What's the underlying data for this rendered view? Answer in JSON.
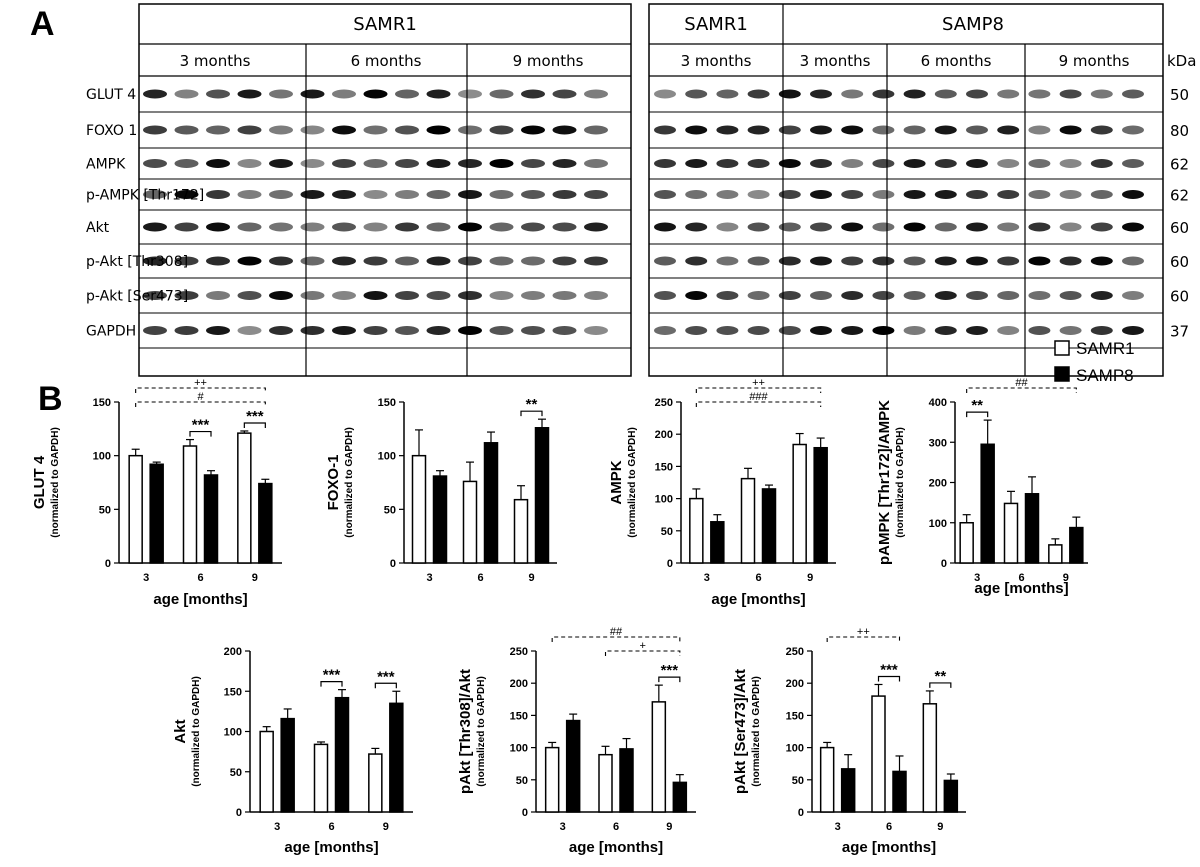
{
  "panel_a": {
    "letter": "A",
    "left_group": "SAMR1",
    "right_groups": [
      "SAMR1",
      "SAMP8"
    ],
    "left_months": [
      "3 months",
      "6 months",
      "9 months"
    ],
    "right_months": [
      "3 months",
      "3 months",
      "6 months",
      "9 months"
    ],
    "unit": "kDa",
    "rows": [
      {
        "label": "GLUT 4",
        "kda": "50"
      },
      {
        "label": "FOXO 1",
        "kda": "80"
      },
      {
        "label": "AMPK",
        "kda": "62"
      },
      {
        "label": "p-AMPK [Thr172]",
        "kda": "62"
      },
      {
        "label": "Akt",
        "kda": "60"
      },
      {
        "label": "p-Akt [Thr308]",
        "kda": "60"
      },
      {
        "label": "p-Akt [Ser473]",
        "kda": "60"
      },
      {
        "label": "GAPDH",
        "kda": "37"
      }
    ]
  },
  "panel_b": {
    "letter": "B",
    "legend": [
      {
        "name": "SAMR1",
        "color": "#ffffff"
      },
      {
        "name": "SAMP8",
        "color": "#000000"
      }
    ]
  },
  "chart_data": [
    {
      "type": "bar",
      "ylabel": "GLUT 4",
      "ylabel_sub": "(normalized to GAPDH)",
      "xlabel": "age [months]",
      "categories": [
        "3",
        "6",
        "9"
      ],
      "ylim": [
        0,
        150
      ],
      "yticks": [
        "0",
        "50",
        "100",
        "150"
      ],
      "series": [
        {
          "name": "SAMR1",
          "values": [
            100,
            109,
            121
          ],
          "errors": [
            6,
            6,
            2
          ]
        },
        {
          "name": "SAMP8",
          "values": [
            92,
            82,
            74
          ],
          "errors": [
            2,
            4,
            4
          ]
        }
      ],
      "significance": [
        {
          "label": "***",
          "between": "6"
        },
        {
          "label": "***",
          "between": "9"
        }
      ],
      "comparisons": [
        {
          "label": "++",
          "from": "3",
          "to": "9"
        },
        {
          "label": "#",
          "from": "3",
          "to": "9"
        }
      ]
    },
    {
      "type": "bar",
      "ylabel": "FOXO-1",
      "ylabel_sub": "(normalized to GAPDH)",
      "xlabel": "",
      "categories": [
        "3",
        "6",
        "9"
      ],
      "ylim": [
        0,
        150
      ],
      "yticks": [
        "0",
        "50",
        "100",
        "150"
      ],
      "series": [
        {
          "name": "SAMR1",
          "values": [
            100,
            76,
            59
          ],
          "errors": [
            24,
            18,
            13
          ]
        },
        {
          "name": "SAMP8",
          "values": [
            81,
            112,
            126
          ],
          "errors": [
            5,
            10,
            8
          ]
        }
      ],
      "significance": [
        {
          "label": "**",
          "between": "9"
        }
      ],
      "comparisons": []
    },
    {
      "type": "bar",
      "ylabel": "AMPK",
      "ylabel_sub": "(normalized to GAPDH)",
      "xlabel": "age [months]",
      "categories": [
        "3",
        "6",
        "9"
      ],
      "ylim": [
        0,
        250
      ],
      "yticks": [
        "0",
        "50",
        "100",
        "150",
        "200",
        "250"
      ],
      "series": [
        {
          "name": "SAMR1",
          "values": [
            100,
            131,
            184
          ],
          "errors": [
            15,
            16,
            17
          ]
        },
        {
          "name": "SAMP8",
          "values": [
            64,
            115,
            179
          ],
          "errors": [
            11,
            6,
            15
          ]
        }
      ],
      "significance": [],
      "comparisons": [
        {
          "label": "++",
          "from": "3",
          "to": "9"
        },
        {
          "label": "###",
          "from": "3",
          "to": "9"
        }
      ]
    },
    {
      "type": "bar",
      "ylabel": "pAMPK [Thr172]/AMPK",
      "ylabel_sub": "(normalized to GAPDH)",
      "xlabel": "age [months]",
      "categories": [
        "3",
        "6",
        "9"
      ],
      "ylim": [
        0,
        400
      ],
      "yticks": [
        "0",
        "100",
        "200",
        "300",
        "400"
      ],
      "series": [
        {
          "name": "SAMR1",
          "values": [
            100,
            148,
            45
          ],
          "errors": [
            20,
            30,
            15
          ]
        },
        {
          "name": "SAMP8",
          "values": [
            295,
            172,
            88
          ],
          "errors": [
            60,
            42,
            26
          ]
        }
      ],
      "significance": [
        {
          "label": "**",
          "between": "3"
        }
      ],
      "comparisons": [
        {
          "label": "##",
          "from": "3",
          "to": "9"
        }
      ]
    },
    {
      "type": "bar",
      "ylabel": "Akt",
      "ylabel_sub": "(normalized to GAPDH)",
      "xlabel": "age [months]",
      "categories": [
        "3",
        "6",
        "9"
      ],
      "ylim": [
        0,
        200
      ],
      "yticks": [
        "0",
        "50",
        "100",
        "150",
        "200"
      ],
      "series": [
        {
          "name": "SAMR1",
          "values": [
            100,
            84,
            72
          ],
          "errors": [
            6,
            3,
            7
          ]
        },
        {
          "name": "SAMP8",
          "values": [
            116,
            142,
            135
          ],
          "errors": [
            12,
            10,
            15
          ]
        }
      ],
      "significance": [
        {
          "label": "***",
          "between": "6"
        },
        {
          "label": "***",
          "between": "9"
        }
      ],
      "comparisons": []
    },
    {
      "type": "bar",
      "ylabel": "pAkt [Thr308]/Akt",
      "ylabel_sub": "(normalized to GAPDH)",
      "xlabel": "age [months]",
      "categories": [
        "3",
        "6",
        "9"
      ],
      "ylim": [
        0,
        250
      ],
      "yticks": [
        "0",
        "50",
        "100",
        "150",
        "200",
        "250"
      ],
      "series": [
        {
          "name": "SAMR1",
          "values": [
            100,
            89,
            171
          ],
          "errors": [
            8,
            13,
            26
          ]
        },
        {
          "name": "SAMP8",
          "values": [
            142,
            98,
            46
          ],
          "errors": [
            10,
            16,
            12
          ]
        }
      ],
      "significance": [
        {
          "label": "***",
          "between": "9"
        }
      ],
      "comparisons": [
        {
          "label": "##",
          "from": "3",
          "to": "9"
        },
        {
          "label": "+",
          "from": "6",
          "to": "9"
        }
      ]
    },
    {
      "type": "bar",
      "ylabel": "pAkt [Ser473]/Akt",
      "ylabel_sub": "(normalized to GAPDH)",
      "xlabel": "age [months]",
      "categories": [
        "3",
        "6",
        "9"
      ],
      "ylim": [
        0,
        250
      ],
      "yticks": [
        "0",
        "50",
        "100",
        "150",
        "200",
        "250"
      ],
      "series": [
        {
          "name": "SAMR1",
          "values": [
            100,
            180,
            168
          ],
          "errors": [
            8,
            18,
            20
          ]
        },
        {
          "name": "SAMP8",
          "values": [
            67,
            63,
            49
          ],
          "errors": [
            22,
            24,
            10
          ]
        }
      ],
      "significance": [
        {
          "label": "***",
          "between": "6"
        },
        {
          "label": "**",
          "between": "9"
        }
      ],
      "comparisons": [
        {
          "label": "++",
          "from": "3",
          "to": "6"
        }
      ]
    }
  ]
}
